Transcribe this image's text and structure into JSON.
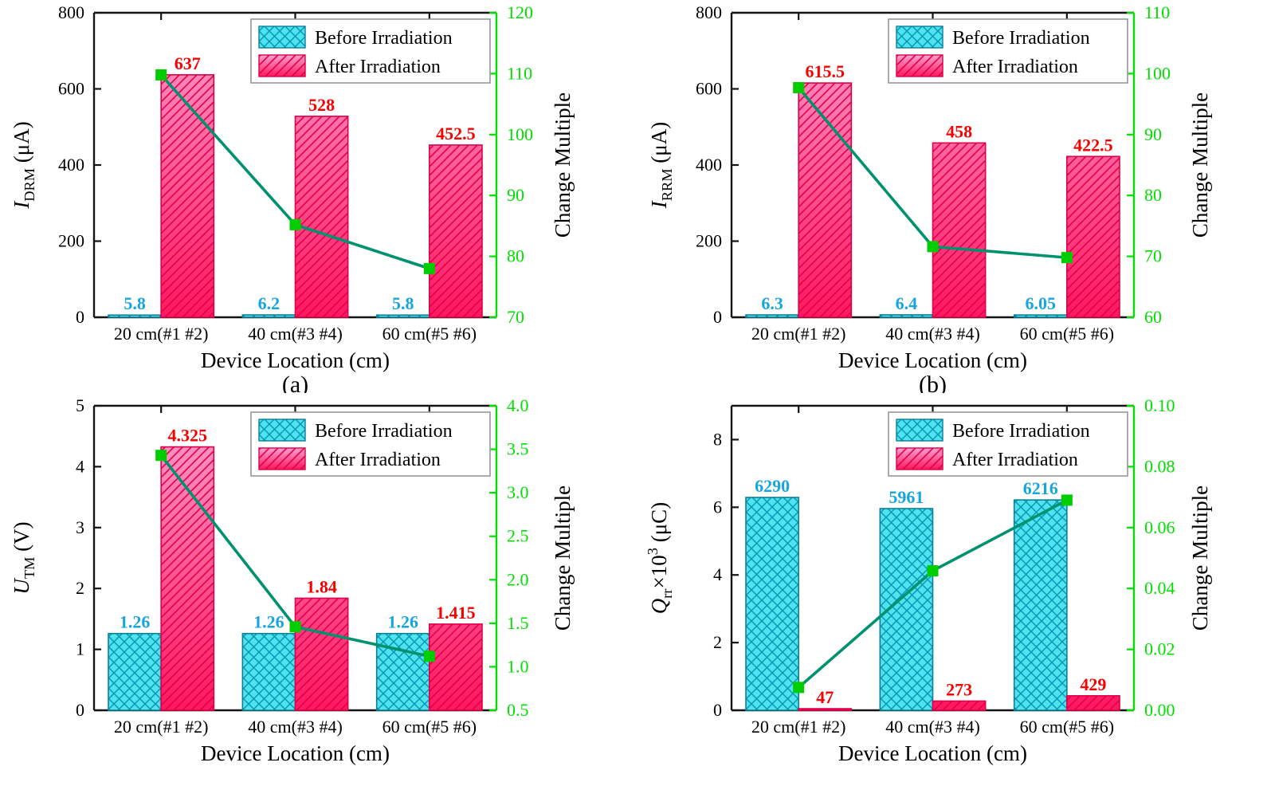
{
  "figure": {
    "xlabel": "Device Location (cm)",
    "right_ylabel": "Change Multiple",
    "categories": [
      "20 cm(#1 #2)",
      "40 cm(#3 #4)",
      "60 cm(#5 #6)"
    ],
    "legend": {
      "before": "Before Irradiation",
      "after": "After Irradiation"
    },
    "colors": {
      "before_fill": "#4fe3f0",
      "before_hatch": "#0897b4",
      "before_edge": "#0c7f96",
      "after_light": "#ffa2d2",
      "after_deep": "#ff1762",
      "after_hatch": "#e20040",
      "after_edge": "#de0048",
      "line": "#00916e",
      "marker": "#00cd00",
      "right_axis": "#00df00",
      "value_before": "#17a5dd",
      "value_after": "#f80000",
      "spine": "#141414",
      "text": "#000000",
      "legend_border": "#909090",
      "background": "#ffffff"
    }
  },
  "chart_data": [
    {
      "id": "a",
      "tag": "(a)",
      "type": "bar",
      "ylabel_segments": [
        {
          "t": "I",
          "s": "i"
        },
        {
          "t": "DRM",
          "s": "sub"
        },
        {
          "t": " (μA)",
          "s": ""
        }
      ],
      "left_axis": {
        "min": 0,
        "max": 800,
        "ticks": [
          "0",
          "200",
          "400",
          "600",
          "800"
        ]
      },
      "right_axis": {
        "min": 70,
        "max": 120,
        "ticks": [
          "70",
          "80",
          "90",
          "100",
          "110",
          "120"
        ]
      },
      "categories": [
        "20 cm(#1 #2)",
        "40 cm(#3 #4)",
        "60 cm(#5 #6)"
      ],
      "series": [
        {
          "name": "Before Irradiation",
          "labels": [
            "5.8",
            "6.2",
            "5.8"
          ],
          "values": [
            5.8,
            6.2,
            5.8
          ]
        },
        {
          "name": "After Irradiation",
          "labels": [
            "637",
            "528",
            "452.5"
          ],
          "values": [
            637,
            528,
            452.5
          ]
        },
        {
          "name": "Change Multiple",
          "values": [
            109.8,
            85.2,
            78.0
          ],
          "axis": "right"
        }
      ],
      "bar_plot_divisor": 1
    },
    {
      "id": "b",
      "tag": "(b)",
      "type": "bar",
      "ylabel_segments": [
        {
          "t": "I",
          "s": "i"
        },
        {
          "t": "RRM",
          "s": "sub"
        },
        {
          "t": " (μA)",
          "s": ""
        }
      ],
      "left_axis": {
        "min": 0,
        "max": 800,
        "ticks": [
          "0",
          "200",
          "400",
          "600",
          "800"
        ]
      },
      "right_axis": {
        "min": 60,
        "max": 110,
        "ticks": [
          "60",
          "70",
          "80",
          "90",
          "100",
          "110"
        ]
      },
      "categories": [
        "20 cm(#1 #2)",
        "40 cm(#3 #4)",
        "60 cm(#5 #6)"
      ],
      "series": [
        {
          "name": "Before Irradiation",
          "labels": [
            "6.3",
            "6.4",
            "6.05"
          ],
          "values": [
            6.3,
            6.4,
            6.05
          ]
        },
        {
          "name": "After Irradiation",
          "labels": [
            "615.5",
            "458",
            "422.5"
          ],
          "values": [
            615.5,
            458,
            422.5
          ]
        },
        {
          "name": "Change Multiple",
          "values": [
            97.7,
            71.6,
            69.8
          ],
          "axis": "right"
        }
      ],
      "bar_plot_divisor": 1
    },
    {
      "id": "c",
      "tag": "",
      "type": "bar",
      "ylabel_segments": [
        {
          "t": "U",
          "s": "i"
        },
        {
          "t": "TM",
          "s": "sub"
        },
        {
          "t": " (V)",
          "s": ""
        }
      ],
      "left_axis": {
        "min": 0,
        "max": 5,
        "ticks": [
          "0",
          "1",
          "2",
          "3",
          "4",
          "5"
        ]
      },
      "right_axis": {
        "min": 0.5,
        "max": 4.0,
        "ticks": [
          "0.5",
          "1.0",
          "1.5",
          "2.0",
          "2.5",
          "3.0",
          "3.5",
          "4.0"
        ]
      },
      "categories": [
        "20 cm(#1 #2)",
        "40 cm(#3 #4)",
        "60 cm(#5 #6)"
      ],
      "series": [
        {
          "name": "Before Irradiation",
          "labels": [
            "1.26",
            "1.26",
            "1.26"
          ],
          "values": [
            1.26,
            1.26,
            1.26
          ]
        },
        {
          "name": "After Irradiation",
          "labels": [
            "4.325",
            "1.84",
            "1.415"
          ],
          "values": [
            4.325,
            1.84,
            1.415
          ]
        },
        {
          "name": "Change Multiple",
          "values": [
            3.43,
            1.46,
            1.12
          ],
          "axis": "right"
        }
      ],
      "bar_plot_divisor": 1
    },
    {
      "id": "d",
      "tag": "",
      "type": "bar",
      "ylabel_segments": [
        {
          "t": "Q",
          "s": "i"
        },
        {
          "t": "rr",
          "s": "sub"
        },
        {
          "t": "×10",
          "s": ""
        },
        {
          "t": "3",
          "s": "sup"
        },
        {
          "t": " (μC)",
          "s": ""
        }
      ],
      "left_axis": {
        "min": 0,
        "max": 9,
        "ticks": [
          "0",
          "2",
          "4",
          "6",
          "8"
        ]
      },
      "right_axis": {
        "min": 0.0,
        "max": 0.1,
        "ticks": [
          "0.00",
          "0.02",
          "0.04",
          "0.06",
          "0.08",
          "0.10"
        ]
      },
      "categories": [
        "20 cm(#1 #2)",
        "40 cm(#3 #4)",
        "60 cm(#5 #6)"
      ],
      "series": [
        {
          "name": "Before Irradiation",
          "labels": [
            "6290",
            "5961",
            "6216"
          ],
          "values": [
            6290,
            5961,
            6216
          ]
        },
        {
          "name": "After Irradiation",
          "labels": [
            "47",
            "273",
            "429"
          ],
          "values": [
            47,
            273,
            429
          ]
        },
        {
          "name": "Change Multiple",
          "values": [
            0.0075,
            0.0458,
            0.069
          ],
          "axis": "right"
        }
      ],
      "bar_plot_divisor": 1000
    }
  ]
}
